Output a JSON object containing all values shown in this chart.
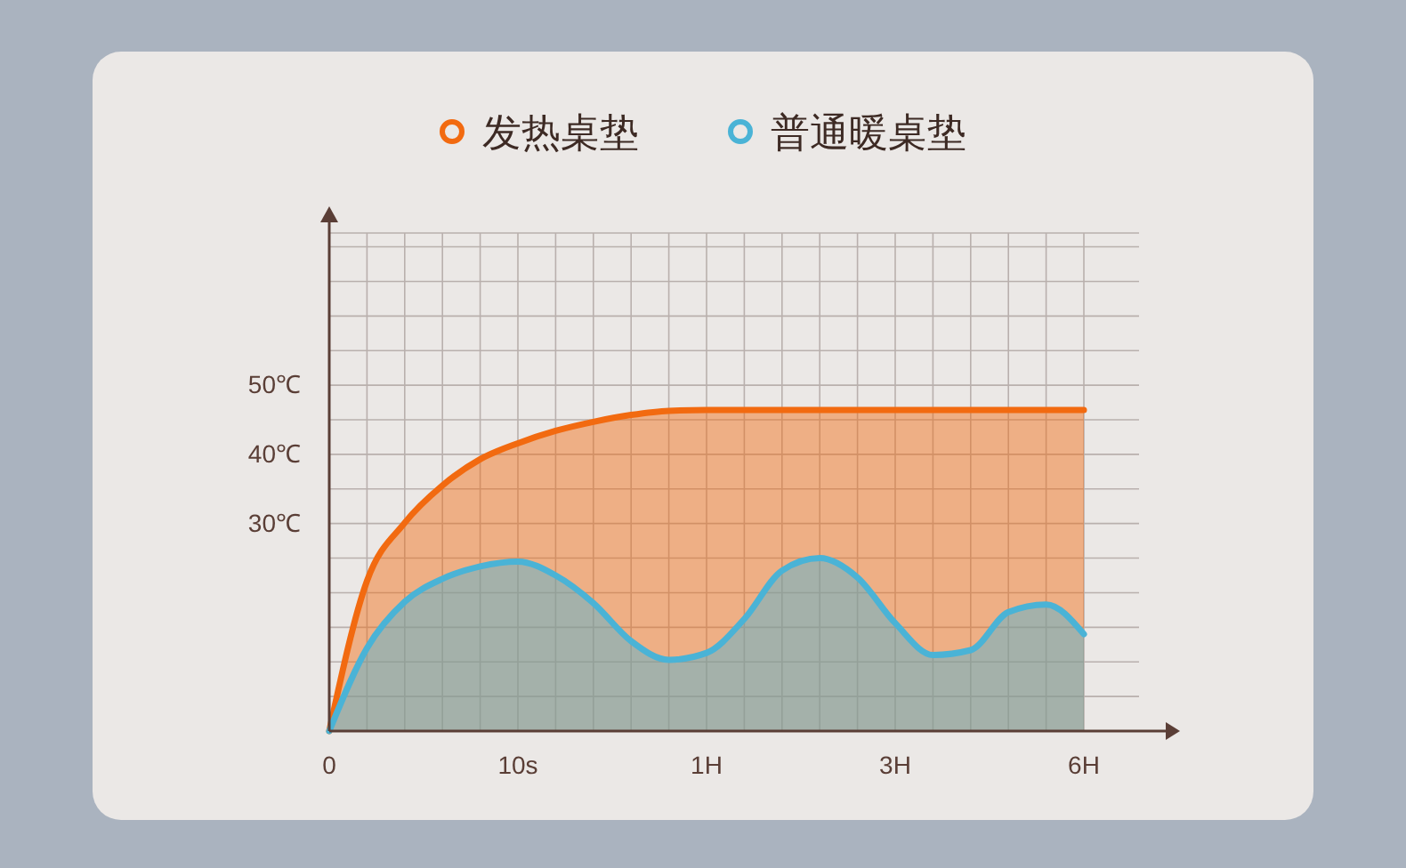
{
  "chart_data": {
    "type": "area",
    "legend": "top",
    "grid": true,
    "categories": [
      "0",
      null,
      null,
      null,
      null,
      "10s",
      null,
      null,
      null,
      null,
      "1H",
      null,
      null,
      null,
      null,
      "3H",
      null,
      null,
      null,
      null,
      "6H"
    ],
    "ylim": [
      0,
      72
    ],
    "yticks": [
      {
        "value": 5,
        "label": null
      },
      {
        "value": 10,
        "label": null
      },
      {
        "value": 15,
        "label": null
      },
      {
        "value": 20,
        "label": null
      },
      {
        "value": 25,
        "label": null
      },
      {
        "value": 30,
        "label": "30℃"
      },
      {
        "value": 35,
        "label": null
      },
      {
        "value": 40,
        "label": "40℃"
      },
      {
        "value": 45,
        "label": null
      },
      {
        "value": 50,
        "label": "50℃"
      },
      {
        "value": 55,
        "label": null
      },
      {
        "value": 60,
        "label": null
      },
      {
        "value": 65,
        "label": null
      },
      {
        "value": 70,
        "label": null
      },
      {
        "value": 72,
        "label": null
      }
    ],
    "series": [
      {
        "name": "发热桌垫",
        "color": "#f26a10",
        "values": [
          0,
          21.7,
          30.1,
          35.5,
          39.3,
          41.6,
          43.4,
          44.7,
          45.7,
          46.3,
          46.4,
          46.4,
          46.4,
          46.4,
          46.4,
          46.4,
          46.4,
          46.4,
          46.4,
          46.4,
          46.4
        ]
      },
      {
        "name": "普通暖桌垫",
        "color": "#4ab3d6",
        "values": [
          0,
          12,
          18.7,
          22,
          23.8,
          24.5,
          22.5,
          18.5,
          13,
          10.3,
          11.3,
          16.2,
          23.2,
          25,
          22.2,
          15.6,
          11,
          11.7,
          17.2,
          18.3,
          14
        ]
      }
    ]
  }
}
